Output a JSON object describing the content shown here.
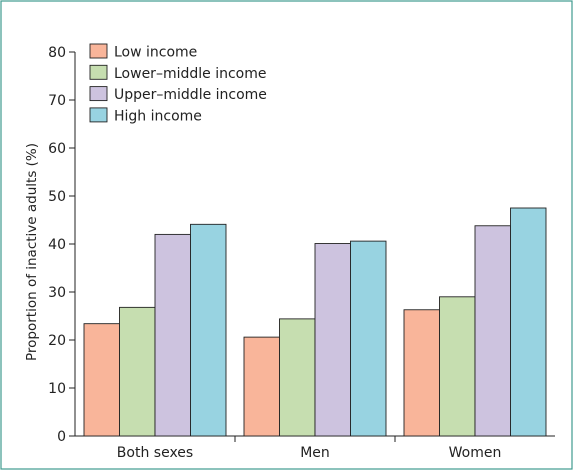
{
  "chart_data": {
    "type": "bar",
    "categories": [
      "Both sexes",
      "Men",
      "Women"
    ],
    "series": [
      {
        "name": "Low income",
        "values": [
          23.4,
          20.6,
          26.3
        ],
        "color": "#f9b59a"
      },
      {
        "name": "Lower–middle income",
        "values": [
          26.8,
          24.4,
          29.0
        ],
        "color": "#c6deb0"
      },
      {
        "name": "Upper–middle income",
        "values": [
          42.0,
          40.1,
          43.8
        ],
        "color": "#cdc3df"
      },
      {
        "name": "High income",
        "values": [
          44.1,
          40.6,
          47.5
        ],
        "color": "#98d3e1"
      }
    ],
    "ylabel": "Proportion of inactive adults (%)",
    "xlabel": "",
    "ylim": [
      0,
      80
    ],
    "yticks": [
      0,
      10,
      20,
      30,
      40,
      50,
      60,
      70,
      80
    ],
    "grid": false,
    "legend_position": "top-left",
    "frame_color": "#3f9b8f",
    "axis_color": "#222222"
  }
}
